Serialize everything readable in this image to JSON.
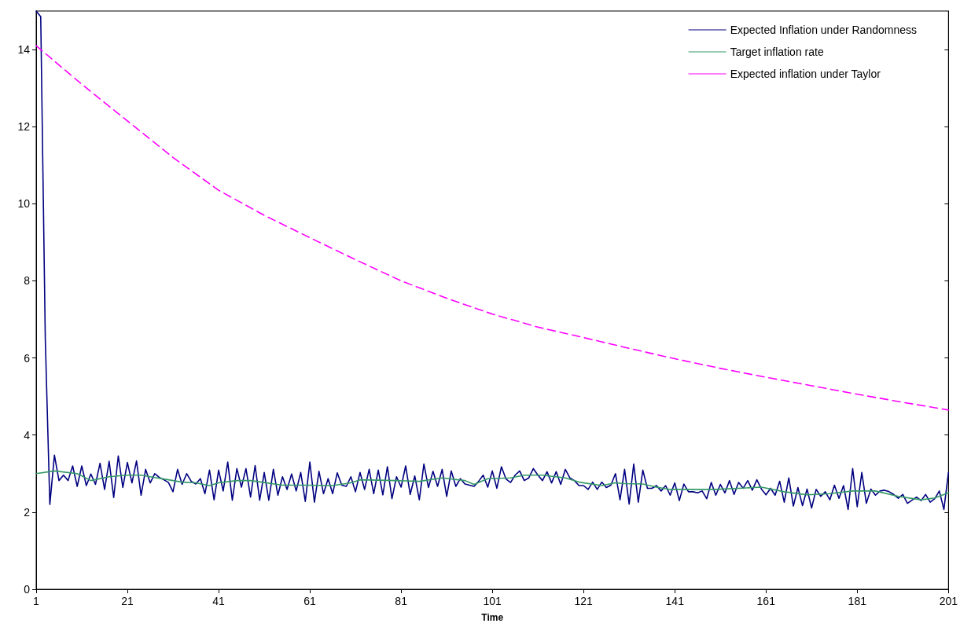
{
  "chart_data": {
    "type": "line",
    "xlabel": "Time",
    "xlim": [
      1,
      201
    ],
    "xticks": [
      1,
      21,
      41,
      61,
      81,
      101,
      121,
      141,
      161,
      181,
      201
    ],
    "ylim": [
      0,
      15
    ],
    "yticks": [
      0,
      2,
      4,
      6,
      8,
      10,
      12,
      14
    ],
    "grid": false,
    "legend": "top right",
    "marker": "none",
    "series": [
      {
        "name": "Expected Inflation under Randomness",
        "color": "#000080",
        "line_style": "solid",
        "x": [
          1,
          2,
          3,
          4,
          5,
          6,
          7,
          8,
          9,
          10,
          11,
          12,
          13,
          14,
          15,
          16,
          17,
          18,
          19,
          20,
          21,
          22,
          23,
          24,
          25,
          26,
          27,
          28,
          29,
          30,
          31,
          32,
          33,
          34,
          35,
          36,
          37,
          38,
          39,
          40,
          41,
          42,
          43,
          44,
          45,
          46,
          47,
          48,
          49,
          50,
          51,
          52,
          53,
          54,
          55,
          56,
          57,
          58,
          59,
          60,
          61,
          62,
          63,
          64,
          65,
          66,
          67,
          68,
          69,
          70,
          71,
          72,
          73,
          74,
          75,
          76,
          77,
          78,
          79,
          80,
          81,
          82,
          83,
          84,
          85,
          86,
          87,
          88,
          89,
          90,
          91,
          92,
          93,
          94,
          95,
          96,
          97,
          98,
          99,
          100,
          101,
          102,
          103,
          104,
          105,
          106,
          107,
          108,
          109,
          110,
          111,
          112,
          113,
          114,
          115,
          116,
          117,
          118,
          119,
          120,
          121,
          122,
          123,
          124,
          125,
          126,
          127,
          128,
          129,
          130,
          131,
          132,
          133,
          134,
          135,
          136,
          137,
          138,
          139,
          140,
          141,
          142,
          143,
          144,
          145,
          146,
          147,
          148,
          149,
          150,
          151,
          152,
          153,
          154,
          155,
          156,
          157,
          158,
          159,
          160,
          161,
          162,
          163,
          164,
          165,
          166,
          167,
          168,
          169,
          170,
          171,
          172,
          173,
          174,
          175,
          176,
          177,
          178,
          179,
          180,
          181,
          182,
          183,
          184,
          185,
          186,
          187,
          188,
          189,
          190,
          191,
          192,
          193,
          194,
          195,
          196,
          197,
          198,
          199,
          200,
          201
        ],
        "values": [
          15,
          14.85,
          6.5,
          2.2,
          3.48,
          2.82,
          2.96,
          2.82,
          3.2,
          2.67,
          3.2,
          2.69,
          2.99,
          2.72,
          3.27,
          2.59,
          3.32,
          2.38,
          3.46,
          2.64,
          3.29,
          2.76,
          3.33,
          2.44,
          3.11,
          2.76,
          3.0,
          2.9,
          2.84,
          2.77,
          2.53,
          3.11,
          2.72,
          3.0,
          2.8,
          2.73,
          2.87,
          2.48,
          3.09,
          2.32,
          3.09,
          2.55,
          3.3,
          2.31,
          3.13,
          2.65,
          3.13,
          2.39,
          3.21,
          2.31,
          3.03,
          2.31,
          3.11,
          2.44,
          2.92,
          2.59,
          2.99,
          2.55,
          3.03,
          2.28,
          3.3,
          2.26,
          3.06,
          2.48,
          2.87,
          2.48,
          3.02,
          2.7,
          2.67,
          2.92,
          2.53,
          3.03,
          2.59,
          3.11,
          2.48,
          3.09,
          2.45,
          3.18,
          2.35,
          2.92,
          2.65,
          3.2,
          2.46,
          2.94,
          2.32,
          3.25,
          2.64,
          3.06,
          2.67,
          3.11,
          2.41,
          3.07,
          2.67,
          2.87,
          2.73,
          2.7,
          2.67,
          2.8,
          2.96,
          2.65,
          3.07,
          2.62,
          3.18,
          2.86,
          2.77,
          2.96,
          3.07,
          2.82,
          2.89,
          3.13,
          2.96,
          2.82,
          3.05,
          2.76,
          3.05,
          2.72,
          3.11,
          2.89,
          2.82,
          2.69,
          2.69,
          2.59,
          2.78,
          2.59,
          2.78,
          2.64,
          2.7,
          3.0,
          2.32,
          3.11,
          2.21,
          3.25,
          2.26,
          3.09,
          2.62,
          2.62,
          2.69,
          2.55,
          2.69,
          2.44,
          2.76,
          2.3,
          2.73,
          2.53,
          2.53,
          2.5,
          2.55,
          2.35,
          2.77,
          2.44,
          2.72,
          2.5,
          2.82,
          2.46,
          2.77,
          2.62,
          2.82,
          2.57,
          2.84,
          2.6,
          2.45,
          2.62,
          2.44,
          2.8,
          2.26,
          2.89,
          2.16,
          2.64,
          2.17,
          2.6,
          2.11,
          2.59,
          2.41,
          2.53,
          2.32,
          2.7,
          2.36,
          2.69,
          2.07,
          3.13,
          2.14,
          3.03,
          2.23,
          2.6,
          2.44,
          2.55,
          2.57,
          2.53,
          2.46,
          2.36,
          2.46,
          2.23,
          2.31,
          2.39,
          2.3,
          2.46,
          2.26,
          2.35,
          2.55,
          2.07,
          3.03
        ]
      },
      {
        "name": "Target inflation rate",
        "color": "#339966",
        "line_style": "solid",
        "x": [
          1,
          5,
          10,
          13,
          17,
          21,
          24,
          27,
          30,
          33,
          36,
          39,
          41,
          45,
          48,
          51,
          55,
          60,
          66,
          70,
          72,
          80,
          85,
          90,
          95,
          97,
          100,
          105,
          108,
          112,
          117,
          120,
          125,
          128,
          130,
          134,
          137,
          140,
          145,
          150,
          155,
          160,
          165,
          170,
          175,
          180,
          185,
          190,
          195,
          198,
          201
        ],
        "values": [
          3.0,
          3.07,
          3.0,
          2.82,
          2.92,
          2.96,
          2.96,
          2.9,
          2.84,
          2.78,
          2.76,
          2.69,
          2.76,
          2.82,
          2.82,
          2.77,
          2.7,
          2.7,
          2.69,
          2.76,
          2.84,
          2.82,
          2.8,
          2.89,
          2.82,
          2.72,
          2.87,
          2.89,
          2.96,
          2.96,
          2.89,
          2.78,
          2.69,
          2.76,
          2.74,
          2.73,
          2.65,
          2.59,
          2.59,
          2.59,
          2.62,
          2.65,
          2.53,
          2.45,
          2.48,
          2.55,
          2.55,
          2.41,
          2.32,
          2.37,
          2.5
        ]
      },
      {
        "name": "Expected inflation under Taylor",
        "color": "#ff00ff",
        "line_style": "dashed",
        "x": [
          1,
          11,
          21,
          31,
          41,
          51,
          61,
          71,
          81,
          91,
          101,
          111,
          121,
          131,
          141,
          151,
          161,
          171,
          181,
          191,
          201
        ],
        "values": [
          14.1,
          13.1,
          12.15,
          11.2,
          10.35,
          9.7,
          9.12,
          8.55,
          8.0,
          7.55,
          7.14,
          6.8,
          6.53,
          6.25,
          5.98,
          5.73,
          5.5,
          5.28,
          5.06,
          4.85,
          4.65
        ]
      }
    ]
  }
}
